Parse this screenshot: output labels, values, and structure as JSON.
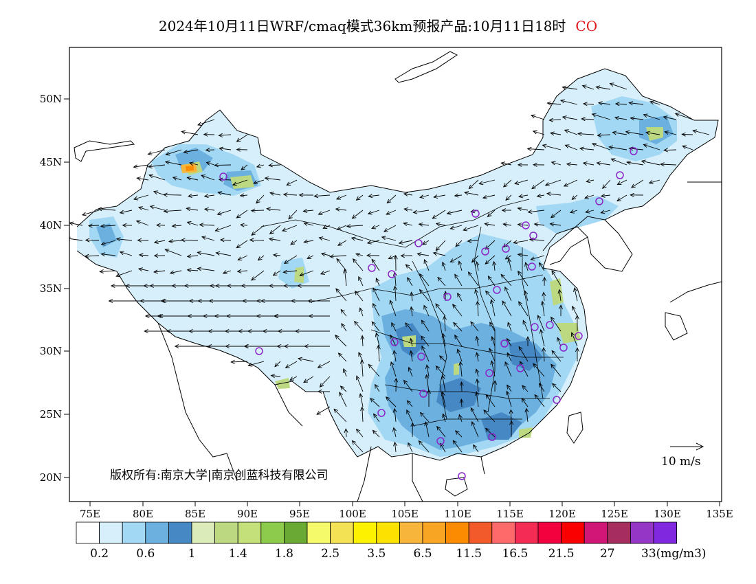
{
  "header": {
    "title": "2024年10月11日WRF/cmaq模式36km预报产品:10月11日18时",
    "species": "CO"
  },
  "map": {
    "lat_labels": [
      "50N",
      "45N",
      "40N",
      "35N",
      "30N",
      "25N",
      "20N"
    ],
    "lon_labels": [
      "75E",
      "80E",
      "85E",
      "90E",
      "95E",
      "100E",
      "105E",
      "110E",
      "115E",
      "120E",
      "125E",
      "130E",
      "135E"
    ],
    "copyright": "版权所有:南京大学|南京创蓝科技有限公司",
    "wind_scale_label": "10 m/s"
  },
  "colorbar": {
    "colors": [
      "#ffffff",
      "#d7effa",
      "#a2d8f3",
      "#6bb0df",
      "#4688c3",
      "#dbecb8",
      "#bcd981",
      "#c4e07a",
      "#8dcb4c",
      "#6aa934",
      "#f5fa6a",
      "#f3e354",
      "#fdf300",
      "#fbe200",
      "#f8b53c",
      "#f9a524",
      "#fb8b00",
      "#f25a2a",
      "#fe6a6a",
      "#f42c54",
      "#f3003e",
      "#fb0000",
      "#d01676",
      "#a52e5e",
      "#9636c6",
      "#8028e0"
    ],
    "labels": [
      "0.2",
      "0.6",
      "1",
      "1.4",
      "1.8",
      "2.5",
      "3.5",
      "6.5",
      "11.5",
      "16.5",
      "21.5",
      "27",
      "33(mg/m3)"
    ]
  },
  "colors": {
    "station_marker": "#8a24c8",
    "title_species": "#e01818"
  }
}
